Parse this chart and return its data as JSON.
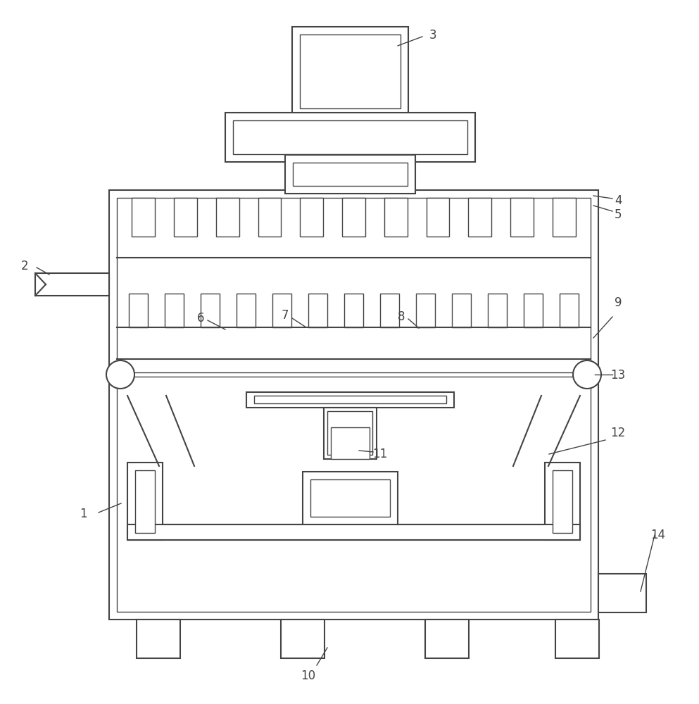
{
  "bg_color": "#ffffff",
  "lc": "#444444",
  "lw": 1.5,
  "lw_thin": 1.0,
  "label_fs": 12
}
